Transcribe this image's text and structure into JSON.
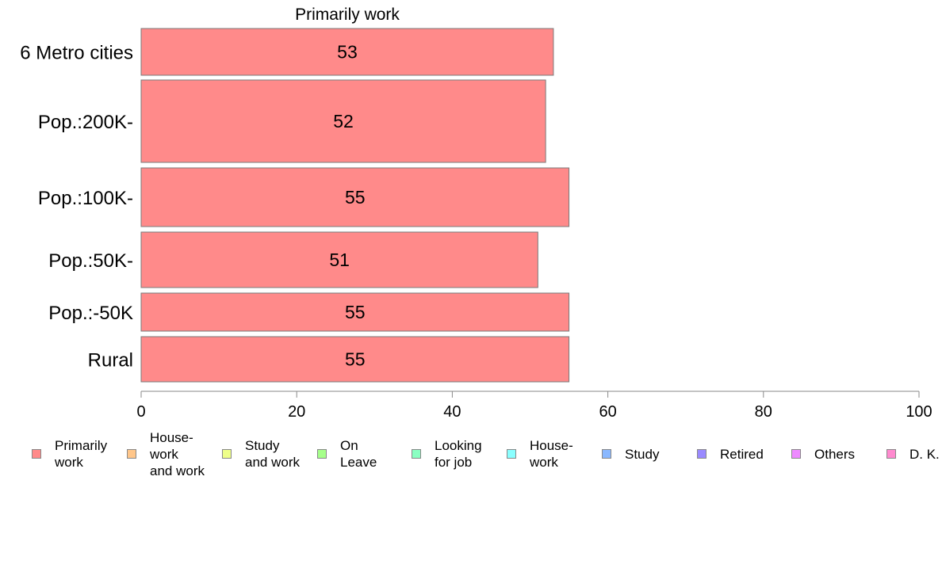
{
  "chart_data": {
    "type": "bar",
    "orientation": "horizontal",
    "title": "Primarily work",
    "categories": [
      "6 Metro cities",
      "Pop.:200K-",
      "Pop.:100K-",
      "Pop.:50K-",
      "Pop.:-50K",
      "Rural"
    ],
    "values": [
      53,
      52,
      55,
      51,
      55,
      55
    ],
    "data_labels": [
      "53",
      "52",
      "55",
      "51",
      "55",
      "55"
    ],
    "xlim": [
      0,
      100
    ],
    "x_ticks": [
      0,
      20,
      40,
      60,
      80,
      100
    ],
    "x_tick_labels": [
      "0",
      "20",
      "40",
      "60",
      "80",
      "100"
    ],
    "grid": false,
    "bar_color": "#ff8a8a",
    "legend_position": "bottom",
    "legend": [
      {
        "label": "Primarily\nwork",
        "color": "#ff8a8a"
      },
      {
        "label": "House-\nwork\nand work",
        "color": "#ffc68a"
      },
      {
        "label": "Study\nand work",
        "color": "#eeff8a"
      },
      {
        "label": "On\nLeave",
        "color": "#a6ff8a"
      },
      {
        "label": "Looking\nfor job",
        "color": "#8affc2"
      },
      {
        "label": "House-\nwork",
        "color": "#8affff"
      },
      {
        "label": "Study",
        "color": "#8ab8ff"
      },
      {
        "label": "Retired",
        "color": "#9a8aff"
      },
      {
        "label": "Others",
        "color": "#ee8aff"
      },
      {
        "label": "D. K.",
        "color": "#ff8acf"
      }
    ]
  }
}
